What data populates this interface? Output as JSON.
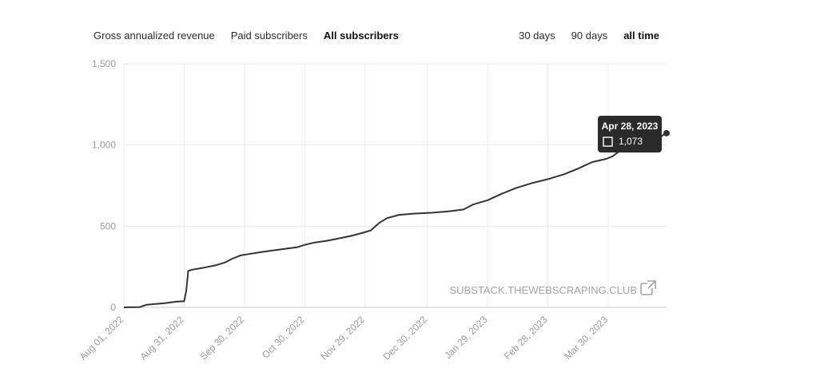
{
  "metric_tabs": [
    {
      "label": "Gross annualized revenue",
      "active": false
    },
    {
      "label": "Paid subscribers",
      "active": false
    },
    {
      "label": "All subscribers",
      "active": true
    }
  ],
  "range_tabs": [
    {
      "label": "30 days",
      "active": false
    },
    {
      "label": "90 days",
      "active": false
    },
    {
      "label": "all time",
      "active": true
    }
  ],
  "watermark": {
    "text": "SUBSTACK.THEWEBSCRAPING.CLUB",
    "icon": "external-link-icon"
  },
  "tooltip": {
    "date": "Apr 28, 2023",
    "value": "1,073"
  },
  "chart_data": {
    "type": "line",
    "title": "",
    "xlabel": "",
    "ylabel": "",
    "ylim": [
      0,
      1500
    ],
    "xlim": [
      "2022-08-01",
      "2023-04-28"
    ],
    "grid": true,
    "y_ticks": [
      0,
      500,
      1000,
      1500
    ],
    "y_tick_labels": [
      "0",
      "500",
      "1,000",
      "1,500"
    ],
    "x_ticks": [
      "2022-08-01",
      "2022-08-31",
      "2022-09-30",
      "2022-10-30",
      "2022-11-29",
      "2022-12-30",
      "2023-01-29",
      "2023-02-28",
      "2023-03-30"
    ],
    "x_tick_labels": [
      "Aug 01, 2022",
      "Aug 31, 2022",
      "Sep 30, 2022",
      "Oct 30, 2022",
      "Nov 29, 2022",
      "Dec 30, 2022",
      "Jan 29, 2023",
      "Feb 28, 2023",
      "Mar 30, 2023"
    ],
    "series": [
      {
        "color": "#333333",
        "points": [
          [
            "2022-08-01",
            0
          ],
          [
            "2022-08-09",
            2
          ],
          [
            "2022-08-12",
            15
          ],
          [
            "2022-08-16",
            20
          ],
          [
            "2022-08-21",
            25
          ],
          [
            "2022-08-24",
            30
          ],
          [
            "2022-08-27",
            35
          ],
          [
            "2022-08-31",
            38
          ],
          [
            "2022-09-01",
            100
          ],
          [
            "2022-09-02",
            225
          ],
          [
            "2022-09-04",
            232
          ],
          [
            "2022-09-10",
            245
          ],
          [
            "2022-09-16",
            260
          ],
          [
            "2022-09-20",
            275
          ],
          [
            "2022-09-24",
            300
          ],
          [
            "2022-09-28",
            320
          ],
          [
            "2022-10-02",
            328
          ],
          [
            "2022-10-08",
            340
          ],
          [
            "2022-10-14",
            350
          ],
          [
            "2022-10-20",
            360
          ],
          [
            "2022-10-26",
            370
          ],
          [
            "2022-10-30",
            385
          ],
          [
            "2022-11-04",
            400
          ],
          [
            "2022-11-10",
            410
          ],
          [
            "2022-11-16",
            425
          ],
          [
            "2022-11-22",
            440
          ],
          [
            "2022-11-28",
            460
          ],
          [
            "2022-12-02",
            475
          ],
          [
            "2022-12-06",
            520
          ],
          [
            "2022-12-10",
            550
          ],
          [
            "2022-12-16",
            570
          ],
          [
            "2022-12-24",
            578
          ],
          [
            "2023-01-01",
            583
          ],
          [
            "2023-01-10",
            592
          ],
          [
            "2023-01-17",
            603
          ],
          [
            "2023-01-22",
            635
          ],
          [
            "2023-01-29",
            660
          ],
          [
            "2023-02-05",
            700
          ],
          [
            "2023-02-12",
            735
          ],
          [
            "2023-02-20",
            765
          ],
          [
            "2023-02-28",
            790
          ],
          [
            "2023-03-08",
            820
          ],
          [
            "2023-03-15",
            855
          ],
          [
            "2023-03-22",
            895
          ],
          [
            "2023-03-29",
            915
          ],
          [
            "2023-04-01",
            930
          ],
          [
            "2023-04-06",
            975
          ],
          [
            "2023-04-14",
            1000
          ],
          [
            "2023-04-22",
            1030
          ],
          [
            "2023-04-28",
            1073
          ]
        ]
      }
    ]
  }
}
